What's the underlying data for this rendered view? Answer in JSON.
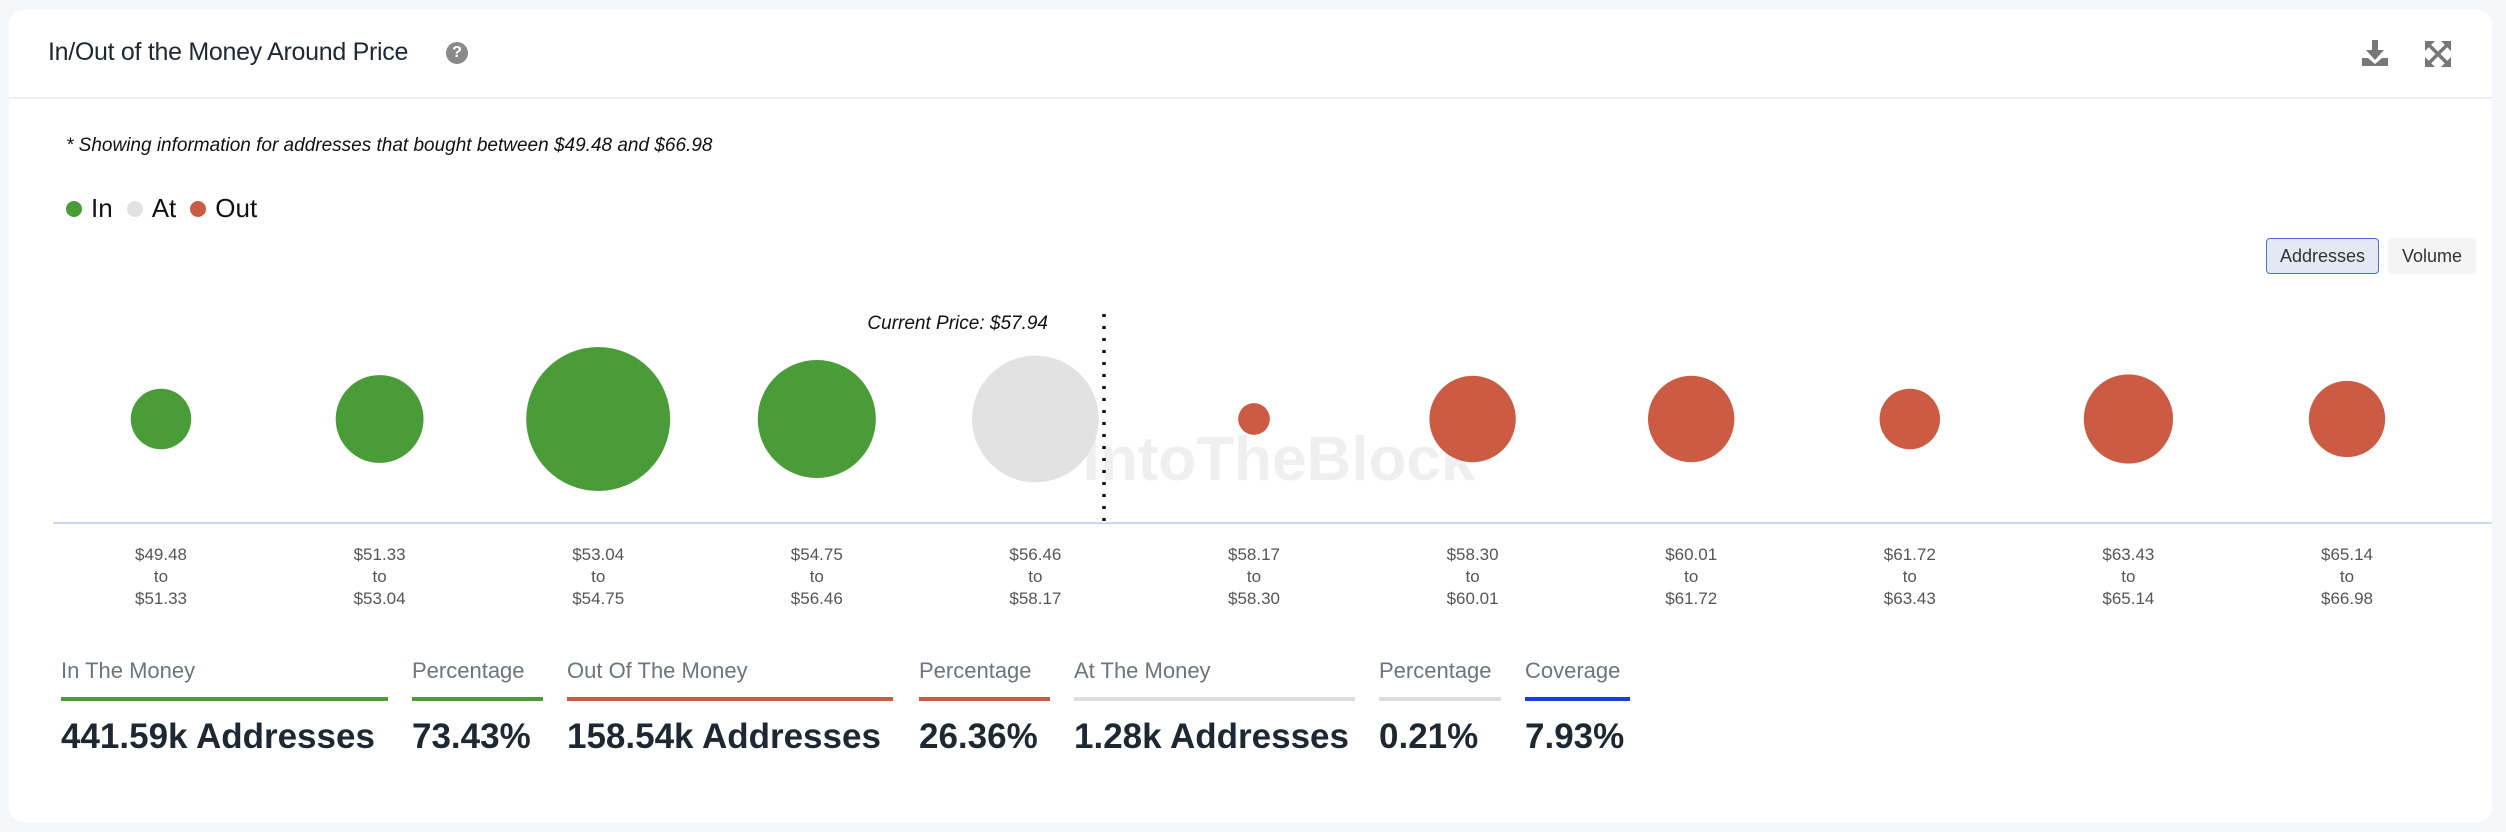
{
  "header": {
    "title": "In/Out of the Money Around Price",
    "help_icon": "question-circle-icon",
    "download_icon": "download-icon",
    "expand_icon": "expand-icon"
  },
  "subtitle": "* Showing information for addresses that bought between $49.48 and $66.98",
  "legend": [
    {
      "label": "In",
      "color": "#4a9c38"
    },
    {
      "label": "At",
      "color": "#e2e2e2"
    },
    {
      "label": "Out",
      "color": "#cb5b42"
    }
  ],
  "toggles": {
    "addresses": "Addresses",
    "volume": "Volume",
    "active": "addresses"
  },
  "watermark": "IntoTheBlock",
  "chart_data": {
    "type": "scatter",
    "title": "In/Out of the Money Around Price",
    "current_price_label": "Current Price: $57.94",
    "current_price": 57.94,
    "bubble_size_note": "relative bubble size (largest = 1)",
    "buckets": [
      {
        "from": "$49.48",
        "to": "$51.33",
        "status": "In",
        "size": 0.42
      },
      {
        "from": "$51.33",
        "to": "$53.04",
        "status": "In",
        "size": 0.61
      },
      {
        "from": "$53.04",
        "to": "$54.75",
        "status": "In",
        "size": 1.0
      },
      {
        "from": "$54.75",
        "to": "$56.46",
        "status": "In",
        "size": 0.82
      },
      {
        "from": "$56.46",
        "to": "$58.17",
        "status": "At",
        "size": 0.88
      },
      {
        "from": "$58.17",
        "to": "$58.30",
        "status": "Out",
        "size": 0.22
      },
      {
        "from": "$58.30",
        "to": "$60.01",
        "status": "Out",
        "size": 0.6
      },
      {
        "from": "$60.01",
        "to": "$61.72",
        "status": "Out",
        "size": 0.6
      },
      {
        "from": "$61.72",
        "to": "$63.43",
        "status": "Out",
        "size": 0.42
      },
      {
        "from": "$63.43",
        "to": "$65.14",
        "status": "Out",
        "size": 0.62
      },
      {
        "from": "$65.14",
        "to": "$66.98",
        "status": "Out",
        "size": 0.53
      }
    ],
    "to_word": "to"
  },
  "stats": [
    {
      "label": "In The Money",
      "value": "441.59k Addresses",
      "color": "#4a9c38"
    },
    {
      "label": "Percentage",
      "value": "73.43%",
      "color": "#4a9c38"
    },
    {
      "label": "Out Of The Money",
      "value": "158.54k Addresses",
      "color": "#cb5b42"
    },
    {
      "label": "Percentage",
      "value": "26.36%",
      "color": "#cb5b42"
    },
    {
      "label": "At The Money",
      "value": "1.28k Addresses",
      "color": "#dddddd"
    },
    {
      "label": "Percentage",
      "value": "0.21%",
      "color": "#dddddd"
    },
    {
      "label": "Coverage",
      "value": "7.93%",
      "color": "#1a3be8"
    }
  ]
}
